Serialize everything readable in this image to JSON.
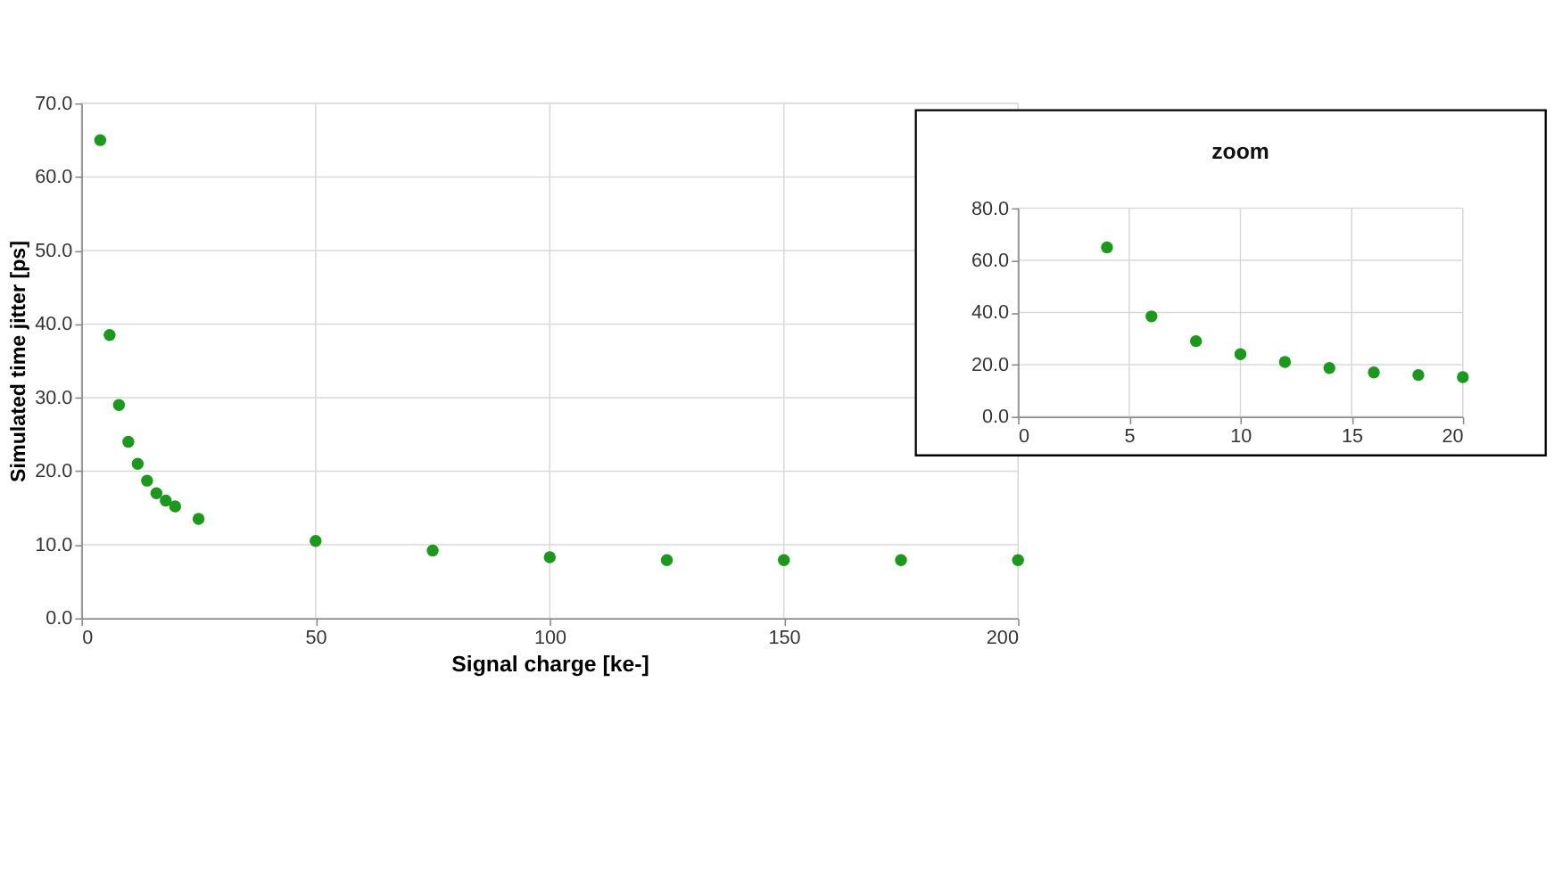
{
  "chart_data": [
    {
      "type": "scatter",
      "xlabel": "Signal charge [ke-]",
      "ylabel": "Simulated time jitter [ps]",
      "x": [
        4,
        6,
        8,
        10,
        12,
        14,
        16,
        18,
        20,
        25,
        50,
        75,
        100,
        125,
        150,
        175,
        200
      ],
      "series": [
        {
          "color": "#1a9a1a",
          "values": [
            65,
            38.5,
            29,
            24,
            21,
            18.7,
            17,
            16,
            15.2,
            13.5,
            10.5,
            9.2,
            8.3,
            7.9,
            7.9,
            7.9,
            7.9
          ]
        }
      ],
      "xlim": [
        0,
        200
      ],
      "xticks": [
        0,
        50,
        100,
        150,
        200
      ],
      "ylim": [
        0,
        70
      ],
      "yticks": [
        {
          "value": 0,
          "label": "0.0"
        },
        {
          "value": 10,
          "label": "10.0"
        },
        {
          "value": 20,
          "label": "20.0"
        },
        {
          "value": 30,
          "label": "30.0"
        },
        {
          "value": 40,
          "label": "40.0"
        },
        {
          "value": 50,
          "label": "50.0"
        },
        {
          "value": 60,
          "label": "60.0"
        },
        {
          "value": 70,
          "label": "70.0"
        }
      ],
      "grid": true,
      "marker": "circle"
    },
    {
      "type": "scatter",
      "title": "zoom",
      "x": [
        4,
        6,
        8,
        10,
        12,
        14,
        16,
        18,
        20
      ],
      "series": [
        {
          "color": "#1a9a1a",
          "values": [
            65,
            38.5,
            29,
            24,
            21,
            18.7,
            17,
            16,
            15.2
          ]
        }
      ],
      "xlim": [
        0,
        20
      ],
      "xticks": [
        0,
        5,
        10,
        15,
        20
      ],
      "ylim": [
        0,
        80
      ],
      "yticks": [
        {
          "value": 0,
          "label": "0.0"
        },
        {
          "value": 20,
          "label": "20.0"
        },
        {
          "value": 40,
          "label": "40.0"
        },
        {
          "value": 60,
          "label": "60.0"
        },
        {
          "value": 80,
          "label": "80.0"
        }
      ],
      "grid": true,
      "marker": "circle"
    }
  ]
}
